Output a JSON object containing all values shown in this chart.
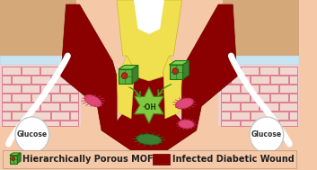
{
  "bg_color": "#f5c8a8",
  "skin_upper_color": "#e8b898",
  "tissue_color": "#f0c8a8",
  "brick_fill": "#f0d8d0",
  "brick_edge": "#d04060",
  "white_layer_color": "#d8eef8",
  "wound_color": "#8b0000",
  "needle_color": "#f0e050",
  "needle_edge": "#c8b820",
  "bacteria_pink_color": "#e04878",
  "bacteria_green_color": "#3a8030",
  "oh_star_color": "#80c840",
  "oh_star_edge": "#508020",
  "glucose_circle_color": "#ffffff",
  "mof_front": "#5ab040",
  "mof_top": "#80d050",
  "mof_right": "#408030",
  "mof_dot": "#cc2020",
  "legend_wound_color": "#8b0000",
  "legend_text_mof": "Hierarchically Porous MOF",
  "legend_text_wound": "Infected Diabetic Wound",
  "glucose_text": "Glucose",
  "oh_text": "·OH",
  "arrow_color": "#40a020",
  "white_curve_color": "#ffffff",
  "legend_border": "#c8a888",
  "text_color": "#202020",
  "title_fontsize": 7.0,
  "glucose_fontsize": 5.5
}
